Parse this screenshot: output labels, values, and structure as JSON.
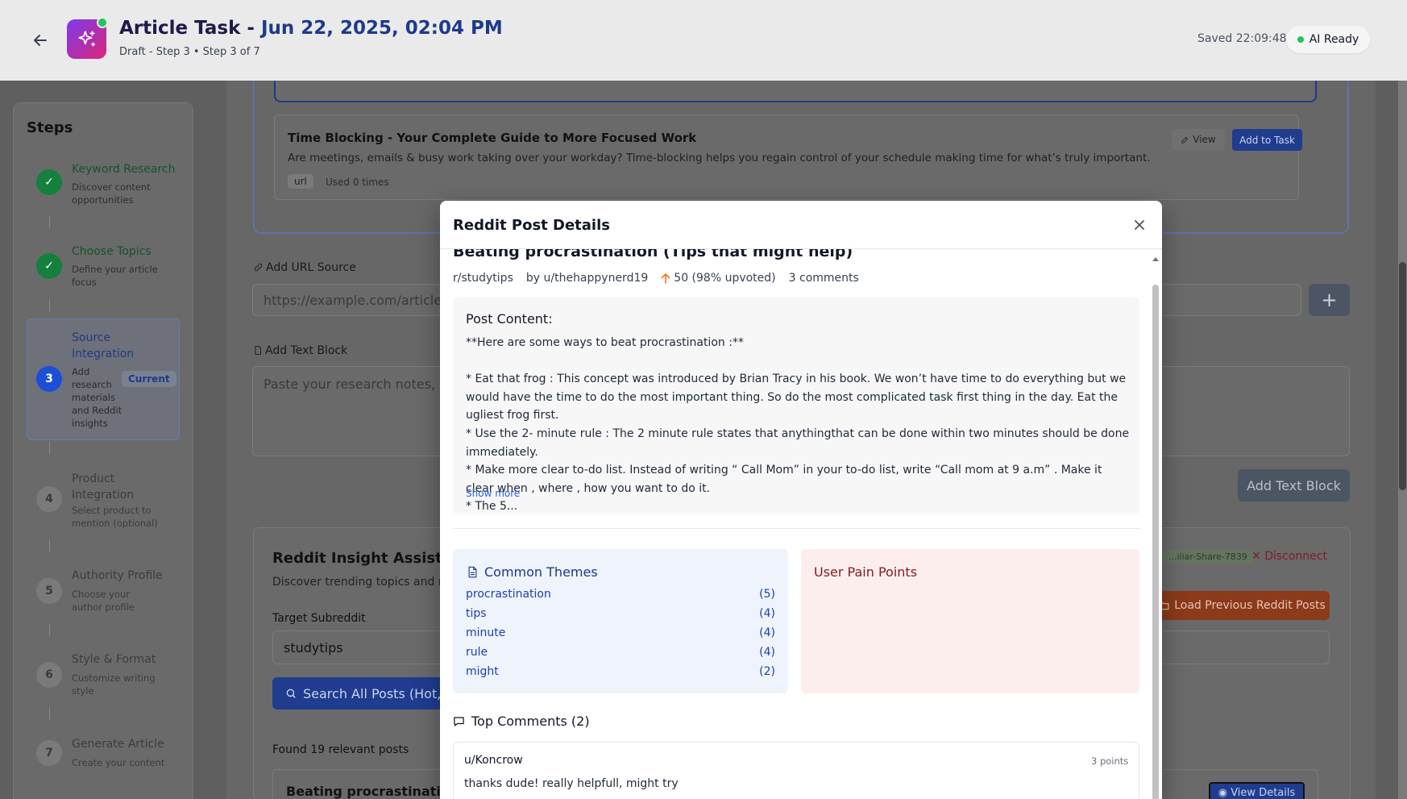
{
  "header": {
    "title_main": "Article Task - ",
    "title_date": "Jun 22, 2025, 02:04 PM",
    "subtitle": "Draft - Step 3 • Step 3 of 7",
    "saved": "Saved 22:09:48",
    "ai_status": "AI Ready"
  },
  "sidebar": {
    "title": "Steps",
    "current_badge": "Current",
    "steps": [
      {
        "num": "✓",
        "name": "Keyword Research",
        "desc": "Discover content opportunities",
        "state": "done"
      },
      {
        "num": "✓",
        "name": "Choose Topics",
        "desc": "Define your article focus",
        "state": "done"
      },
      {
        "num": "3",
        "name": "Source Integration",
        "desc": "Add research materials and Reddit insights",
        "state": "current"
      },
      {
        "num": "4",
        "name": "Product Integration",
        "desc": "Select product to mention (optional)",
        "state": "todo"
      },
      {
        "num": "5",
        "name": "Authority Profile",
        "desc": "Choose your author profile",
        "state": "todo"
      },
      {
        "num": "6",
        "name": "Style & Format",
        "desc": "Customize writing style",
        "state": "todo"
      },
      {
        "num": "7",
        "name": "Generate Article",
        "desc": "Create your content",
        "state": "todo"
      }
    ]
  },
  "sources": {
    "card_title": "Time Blocking - Your Complete Guide to More Focused Work",
    "card_desc": "Are meetings, emails & busy work taking over your workday? Time-blocking helps you regain control of your schedule making time for what’s truly important.",
    "card_tag": "url",
    "card_used": "Used 0 times",
    "view_label": "View",
    "add_task_label": "Add to Task",
    "add_url_label": "Add URL Source",
    "url_placeholder": "https://example.com/article",
    "add_text_label": "Add Text Block",
    "text_placeholder": "Paste your research notes, pro",
    "add_text_button": "Add Text Block"
  },
  "reddit": {
    "title": "Reddit Insight Assistant",
    "subtitle": "Discover trending topics and real",
    "user_chip": "...iliar-Share-7839",
    "disconnect": "Disconnect",
    "load_previous": "Load Previous Reddit Posts",
    "target_label": "Target Subreddit",
    "target_value": "studytips",
    "search_button": "Search All Posts (Hot, To",
    "found": "Found 19 relevant posts",
    "result_title": "Beating procrastination (T",
    "view_details": "View Details"
  },
  "modal": {
    "title": "Reddit Post Details",
    "post_title": "Beating procrastination (Tips that might help)",
    "subreddit": "r/studytips",
    "author": "by u/thehappynerd19",
    "score": "50 (98% upvoted)",
    "comments_count": "3 comments",
    "content_label": "Post Content:",
    "content_text": "**Here are some ways to beat procrastination :**\n\n* Eat that frog : This concept was introduced by Brian Tracy in his book. We won’t have time to do everything but we would have the time to do the most important thing. So do the most complicated task first thing in the day. Eat the ugliest frog first.\n* Use the 2- minute rule : The 2 minute rule states that anythingthat can be done within two minutes should be done immediately.\n* Make more clear to-do list. Instead of writing “ Call Mom” in your to-do list, write “Call mom at 9 a.m” . Make it clear when , where , how you want to do it.\n* The 5...",
    "show_more": "Show more",
    "themes_title": "Common Themes",
    "themes": [
      {
        "word": "procrastination",
        "count": "(5)"
      },
      {
        "word": "tips",
        "count": "(4)"
      },
      {
        "word": "minute",
        "count": "(4)"
      },
      {
        "word": "rule",
        "count": "(4)"
      },
      {
        "word": "might",
        "count": "(2)"
      }
    ],
    "pain_title": "User Pain Points",
    "top_comments_title": "Top Comments (2)",
    "comment": {
      "author": "u/Koncrow",
      "points": "3 points",
      "body": "thanks dude! really helpfull, might try"
    }
  }
}
